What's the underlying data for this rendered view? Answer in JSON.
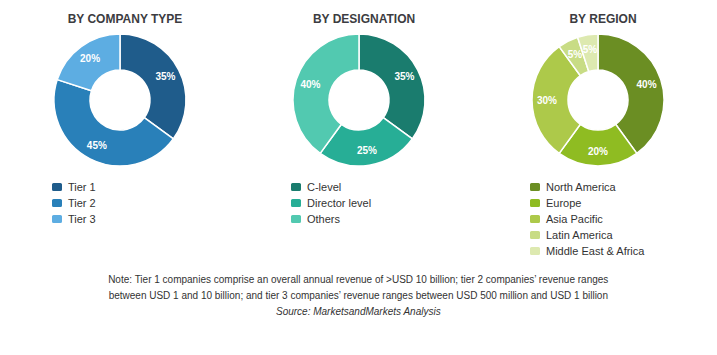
{
  "chart_data": [
    {
      "type": "pie",
      "title": "BY COMPANY TYPE",
      "categories": [
        "Tier 1",
        "Tier 2",
        "Tier 3"
      ],
      "values": [
        35,
        45,
        20
      ],
      "value_labels": [
        "35%",
        "45%",
        "20%"
      ],
      "colors": [
        "#1f5c8b",
        "#2980b9",
        "#5dade2"
      ],
      "data_labels": true,
      "legend": "bottom"
    },
    {
      "type": "pie",
      "title": "BY DESIGNATION",
      "categories": [
        "C-level",
        "Director level",
        "Others"
      ],
      "values": [
        35,
        25,
        40
      ],
      "value_labels": [
        "35%",
        "25%",
        "40%"
      ],
      "colors": [
        "#1a7c6e",
        "#27ae96",
        "#52c9b0"
      ],
      "data_labels": true,
      "legend": "bottom"
    },
    {
      "type": "pie",
      "title": "BY REGION",
      "categories": [
        "North America",
        "Europe",
        "Asia Pacific",
        "Latin America",
        "Middle East & Africa"
      ],
      "values": [
        40,
        20,
        30,
        5,
        5
      ],
      "value_labels": [
        "40%",
        "20%",
        "30%",
        "5%",
        "5%"
      ],
      "colors": [
        "#6b8e23",
        "#8fbc22",
        "#adc94a",
        "#c8dc85",
        "#dde9b0"
      ],
      "data_labels": true,
      "legend": "bottom"
    }
  ],
  "annotations": [
    "Note: Tier 1 companies comprise an overall annual revenue of >USD 10 billion; tier 2 companies’ revenue ranges",
    "between USD 1 and 10 billion; and tier 3 companies’ revenue ranges between USD 500 million and USD 1 billion",
    "Source: MarketsandMarkets Analysis"
  ]
}
